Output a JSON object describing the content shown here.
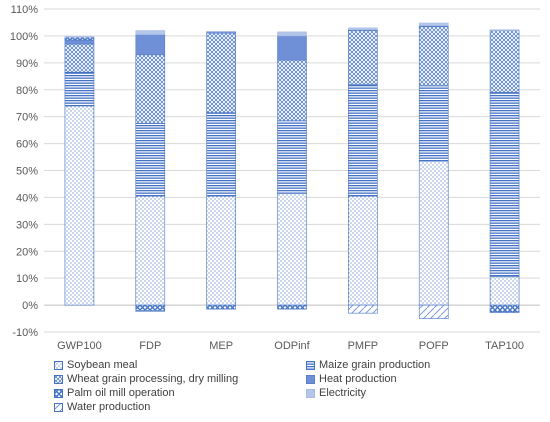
{
  "chart_data": {
    "type": "bar",
    "stacked": true,
    "title": "",
    "xlabel": "",
    "ylabel": "",
    "ylim": [
      -10,
      110
    ],
    "yticks": [
      "-10%",
      "0%",
      "10%",
      "20%",
      "30%",
      "40%",
      "50%",
      "60%",
      "70%",
      "80%",
      "90%",
      "100%",
      "110%"
    ],
    "grid": true,
    "legend_position": "bottom",
    "categories": [
      "GWP100",
      "FDP",
      "MEP",
      "ODPinf",
      "PMFP",
      "POFP",
      "TAP100"
    ],
    "series": [
      {
        "name": "Soybean meal",
        "values": [
          74,
          40.5,
          40.5,
          41.5,
          40.5,
          53.5,
          10.5
        ]
      },
      {
        "name": "Maize grain production",
        "values": [
          12.5,
          27,
          31,
          27,
          41.5,
          28,
          68.5
        ]
      },
      {
        "name": "Wheat grain processing, dry milling",
        "values": [
          10.5,
          25.5,
          29.5,
          22.5,
          20,
          22,
          23
        ]
      },
      {
        "name": "Heat production",
        "values": [
          1.5,
          7.5,
          0.5,
          9,
          0,
          0,
          0
        ]
      },
      {
        "name": "Palm oil mill operation",
        "values": [
          1,
          -2,
          -1.5,
          -1.5,
          0.3,
          0.3,
          -2.5
        ]
      },
      {
        "name": "Electricity",
        "values": [
          0.3,
          1.5,
          0.2,
          1.5,
          0.7,
          1,
          0.3
        ]
      },
      {
        "name": "Water production",
        "values": [
          0,
          -0.3,
          0,
          0,
          -3,
          -5,
          -0.3
        ]
      }
    ],
    "colors": [
      "#4472c4",
      "#4472c4",
      "#4472c4",
      "#5b7fcf",
      "#4472c4",
      "#a9bce6",
      "#4472c4"
    ],
    "patterns": [
      "dots",
      "horizontal-lines",
      "crosshatch",
      "solid",
      "diagonal-cross",
      "light-solid",
      "diagonal"
    ]
  }
}
